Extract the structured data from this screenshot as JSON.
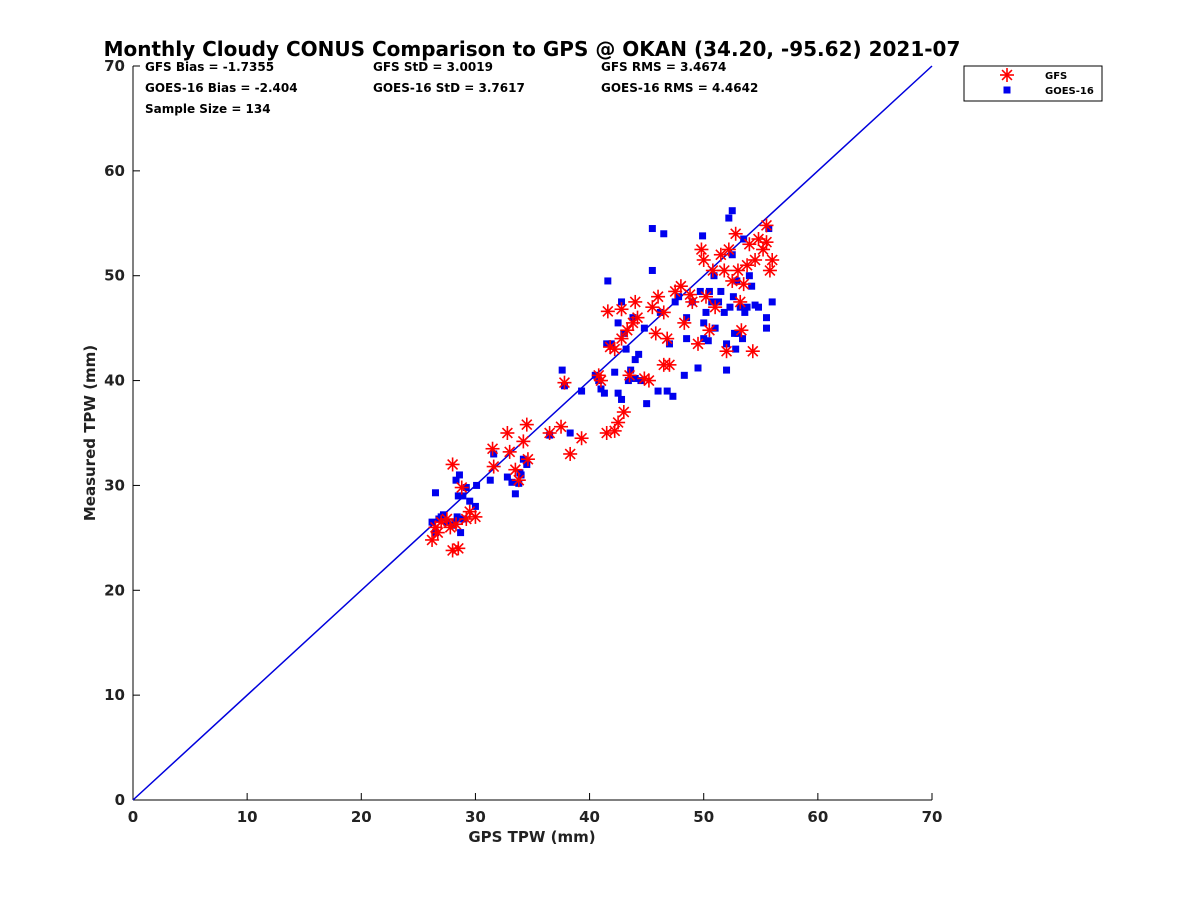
{
  "chart_data": {
    "type": "scatter",
    "title": "Monthly Cloudy CONUS Comparison to GPS @ OKAN (34.20, -95.62) 2021-07",
    "xlabel": "GPS TPW (mm)",
    "ylabel": "Measured TPW (mm)",
    "xlim": [
      0,
      70
    ],
    "ylim": [
      0,
      70
    ],
    "xticks": [
      "0",
      "10",
      "20",
      "30",
      "40",
      "50",
      "60",
      "70"
    ],
    "yticks": [
      "0",
      "10",
      "20",
      "30",
      "40",
      "50",
      "60",
      "70"
    ],
    "grid": false,
    "legend_position": "top-right, outside plot",
    "stats": {
      "gfs_bias": "GFS Bias = -1.7355",
      "gfs_std": "GFS StD = 3.0019",
      "gfs_rms": "GFS RMS = 3.4674",
      "goes_bias": "GOES-16 Bias = -2.404",
      "goes_std": "GOES-16 StD = 3.7617",
      "goes_rms": "GOES-16 RMS = 4.4642",
      "sample_size": "Sample Size = 134"
    },
    "reference_line": {
      "x": [
        0,
        70
      ],
      "y": [
        0,
        70
      ],
      "color": "#0000dd"
    },
    "series": [
      {
        "name": "GFS",
        "marker": "asterisk",
        "color": "#ff0000",
        "points": [
          [
            26.2,
            24.8
          ],
          [
            26.5,
            26.0
          ],
          [
            27.0,
            26.5
          ],
          [
            27.8,
            26.0
          ],
          [
            28.0,
            23.8
          ],
          [
            28.5,
            24.0
          ],
          [
            28.0,
            32.0
          ],
          [
            28.8,
            29.8
          ],
          [
            29.2,
            26.8
          ],
          [
            29.5,
            27.5
          ],
          [
            30.0,
            27.0
          ],
          [
            28.3,
            26.3
          ],
          [
            26.7,
            25.5
          ],
          [
            27.5,
            26.8
          ],
          [
            31.5,
            33.5
          ],
          [
            31.6,
            31.8
          ],
          [
            32.8,
            35.0
          ],
          [
            33.0,
            33.2
          ],
          [
            33.5,
            31.5
          ],
          [
            33.8,
            30.5
          ],
          [
            34.2,
            34.2
          ],
          [
            34.5,
            35.8
          ],
          [
            34.6,
            32.5
          ],
          [
            36.5,
            35.0
          ],
          [
            37.5,
            35.6
          ],
          [
            37.8,
            39.8
          ],
          [
            38.3,
            33.0
          ],
          [
            39.3,
            34.5
          ],
          [
            40.8,
            40.5
          ],
          [
            41.0,
            40.0
          ],
          [
            41.5,
            35.0
          ],
          [
            41.6,
            46.6
          ],
          [
            41.8,
            43.2
          ],
          [
            42.2,
            43.0
          ],
          [
            42.2,
            35.2
          ],
          [
            42.5,
            36.0
          ],
          [
            42.8,
            44.0
          ],
          [
            42.8,
            46.8
          ],
          [
            43.0,
            37.0
          ],
          [
            43.3,
            44.8
          ],
          [
            43.5,
            40.5
          ],
          [
            43.8,
            45.5
          ],
          [
            44.0,
            47.5
          ],
          [
            44.2,
            46.0
          ],
          [
            44.8,
            40.2
          ],
          [
            45.2,
            40.0
          ],
          [
            45.5,
            47.0
          ],
          [
            45.8,
            44.5
          ],
          [
            46.0,
            48.0
          ],
          [
            46.5,
            41.5
          ],
          [
            46.8,
            44.0
          ],
          [
            46.5,
            46.5
          ],
          [
            47.0,
            41.5
          ],
          [
            47.5,
            48.5
          ],
          [
            48.0,
            49.0
          ],
          [
            48.3,
            45.5
          ],
          [
            48.8,
            48.2
          ],
          [
            49.0,
            47.5
          ],
          [
            49.5,
            43.5
          ],
          [
            49.8,
            52.5
          ],
          [
            50.0,
            51.5
          ],
          [
            50.2,
            48.0
          ],
          [
            50.5,
            44.8
          ],
          [
            50.8,
            50.5
          ],
          [
            51.0,
            47.0
          ],
          [
            51.5,
            52.0
          ],
          [
            51.8,
            50.5
          ],
          [
            52.0,
            42.8
          ],
          [
            52.2,
            52.5
          ],
          [
            52.5,
            49.5
          ],
          [
            52.8,
            54.0
          ],
          [
            53.0,
            50.5
          ],
          [
            53.2,
            47.5
          ],
          [
            53.3,
            44.8
          ],
          [
            53.5,
            49.2
          ],
          [
            53.8,
            51.0
          ],
          [
            54.0,
            53.0
          ],
          [
            54.3,
            42.8
          ],
          [
            54.5,
            51.5
          ],
          [
            54.8,
            53.5
          ],
          [
            55.2,
            52.5
          ],
          [
            55.5,
            54.8
          ],
          [
            55.5,
            53.2
          ],
          [
            55.8,
            50.5
          ],
          [
            56.0,
            51.5
          ]
        ]
      },
      {
        "name": "GOES-16",
        "marker": "square",
        "color": "#0000ee",
        "points": [
          [
            26.2,
            26.5
          ],
          [
            26.5,
            25.5
          ],
          [
            26.8,
            26.8
          ],
          [
            27.0,
            27.0
          ],
          [
            27.5,
            26.5
          ],
          [
            28.0,
            26.2
          ],
          [
            28.2,
            26.5
          ],
          [
            28.4,
            27.0
          ],
          [
            28.6,
            26.8
          ],
          [
            28.7,
            25.5
          ],
          [
            28.5,
            29.0
          ],
          [
            28.6,
            31.0
          ],
          [
            26.5,
            29.3
          ],
          [
            28.9,
            29.0
          ],
          [
            29.5,
            28.5
          ],
          [
            30.0,
            28.0
          ],
          [
            28.3,
            30.5
          ],
          [
            29.2,
            29.8
          ],
          [
            27.2,
            27.2
          ],
          [
            29.0,
            26.8
          ],
          [
            30.1,
            30.0
          ],
          [
            31.3,
            30.5
          ],
          [
            31.6,
            33.0
          ],
          [
            32.8,
            30.8
          ],
          [
            33.2,
            30.3
          ],
          [
            33.5,
            29.2
          ],
          [
            33.8,
            30.2
          ],
          [
            34.0,
            31.0
          ],
          [
            34.2,
            32.5
          ],
          [
            34.5,
            32.0
          ],
          [
            33.9,
            31.2
          ],
          [
            36.5,
            34.8
          ],
          [
            37.6,
            41.0
          ],
          [
            37.8,
            39.5
          ],
          [
            38.3,
            35.0
          ],
          [
            39.3,
            39.0
          ],
          [
            40.5,
            40.5
          ],
          [
            40.8,
            40.0
          ],
          [
            41.0,
            39.2
          ],
          [
            41.3,
            38.8
          ],
          [
            41.5,
            43.5
          ],
          [
            41.6,
            49.5
          ],
          [
            41.9,
            43.5
          ],
          [
            42.2,
            40.8
          ],
          [
            42.5,
            45.5
          ],
          [
            42.5,
            38.8
          ],
          [
            42.8,
            47.5
          ],
          [
            42.8,
            38.2
          ],
          [
            43.0,
            44.5
          ],
          [
            43.2,
            43.0
          ],
          [
            43.4,
            40.0
          ],
          [
            43.6,
            41.0
          ],
          [
            43.8,
            46.0
          ],
          [
            44.0,
            42.0
          ],
          [
            44.0,
            40.2
          ],
          [
            44.3,
            42.5
          ],
          [
            44.5,
            40.0
          ],
          [
            44.8,
            45.0
          ],
          [
            45.0,
            37.8
          ],
          [
            45.5,
            50.5
          ],
          [
            45.5,
            54.5
          ],
          [
            46.0,
            39.0
          ],
          [
            46.2,
            46.5
          ],
          [
            46.5,
            54.0
          ],
          [
            46.8,
            39.0
          ],
          [
            47.0,
            43.5
          ],
          [
            47.3,
            38.5
          ],
          [
            47.5,
            47.5
          ],
          [
            47.8,
            48.0
          ],
          [
            48.3,
            40.5
          ],
          [
            48.5,
            46.0
          ],
          [
            48.5,
            44.0
          ],
          [
            49.0,
            47.5
          ],
          [
            49.5,
            41.2
          ],
          [
            49.7,
            48.5
          ],
          [
            49.9,
            53.8
          ],
          [
            50.0,
            44.0
          ],
          [
            50.0,
            45.5
          ],
          [
            50.2,
            46.5
          ],
          [
            50.4,
            43.8
          ],
          [
            50.5,
            48.5
          ],
          [
            50.7,
            47.5
          ],
          [
            50.9,
            50.0
          ],
          [
            51.0,
            45.0
          ],
          [
            51.3,
            47.5
          ],
          [
            51.5,
            48.5
          ],
          [
            51.8,
            46.5
          ],
          [
            52.0,
            43.5
          ],
          [
            52.0,
            41.0
          ],
          [
            52.2,
            55.5
          ],
          [
            52.3,
            47.0
          ],
          [
            52.5,
            56.2
          ],
          [
            52.5,
            52.0
          ],
          [
            52.6,
            48.0
          ],
          [
            52.7,
            44.5
          ],
          [
            52.8,
            43.0
          ],
          [
            52.9,
            49.5
          ],
          [
            53.0,
            44.5
          ],
          [
            53.2,
            47.0
          ],
          [
            53.4,
            44.0
          ],
          [
            53.5,
            53.5
          ],
          [
            53.6,
            46.5
          ],
          [
            53.8,
            47.0
          ],
          [
            54.0,
            50.0
          ],
          [
            54.2,
            49.0
          ],
          [
            54.5,
            47.2
          ],
          [
            54.8,
            47.0
          ],
          [
            55.5,
            46.0
          ],
          [
            55.5,
            45.0
          ],
          [
            55.7,
            54.5
          ],
          [
            56.0,
            47.5
          ]
        ]
      }
    ]
  }
}
